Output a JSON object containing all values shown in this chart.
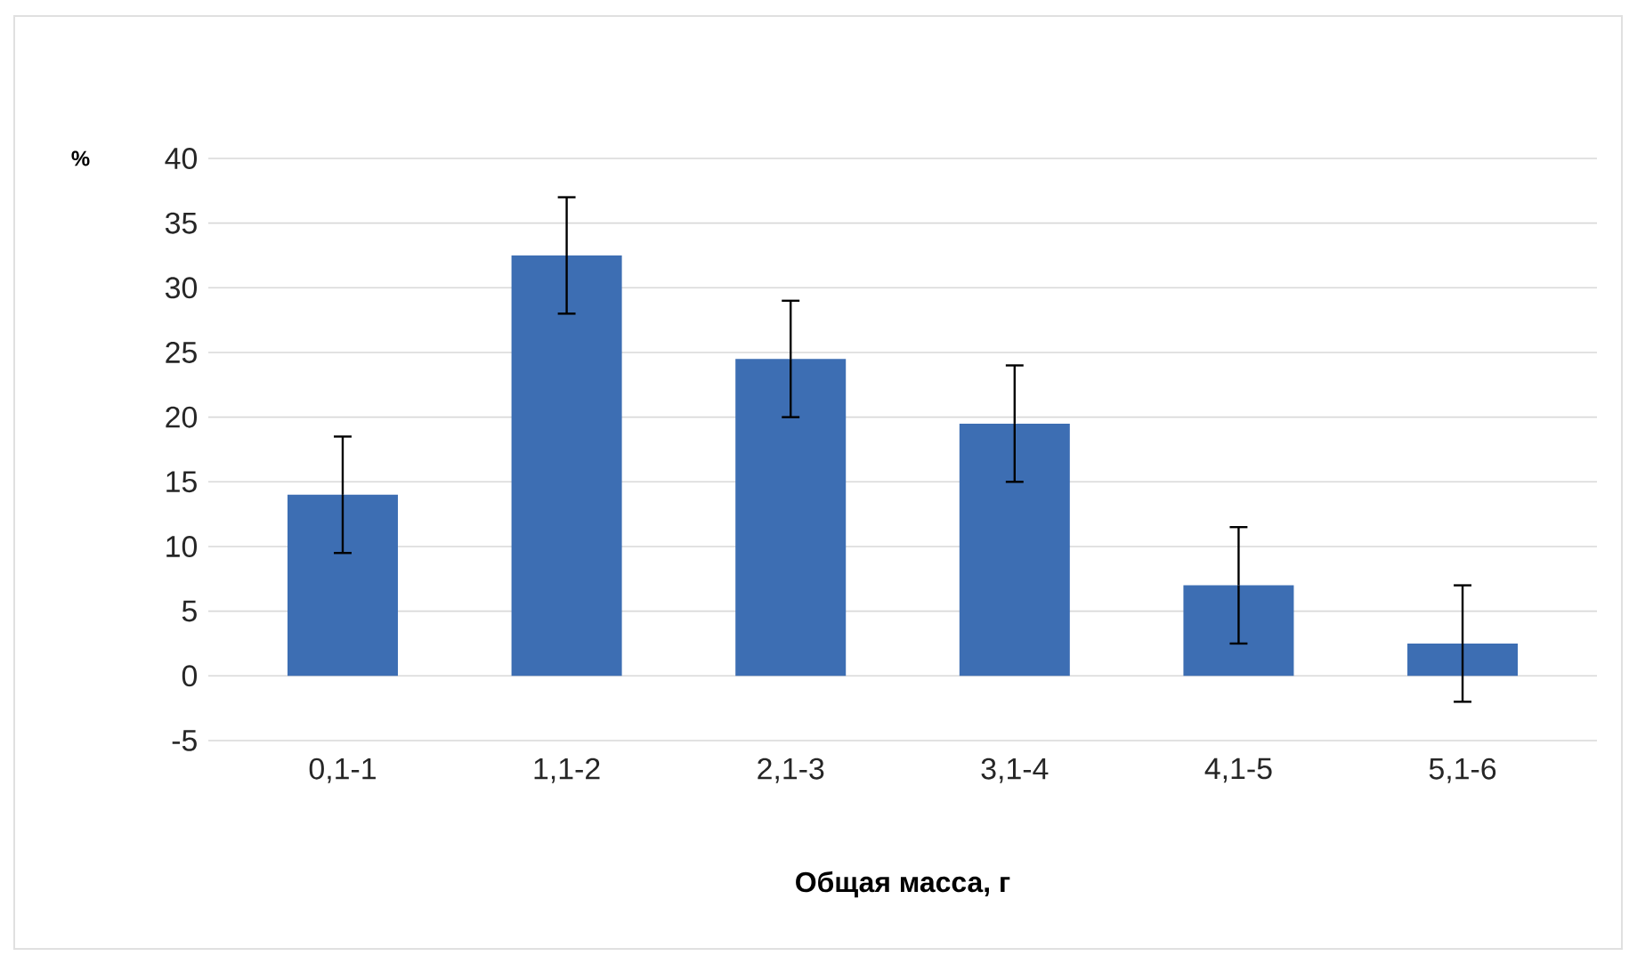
{
  "chart_data": {
    "type": "bar",
    "xlabel": "Общая масса, г",
    "ylabel": "%",
    "categories": [
      "0,1-1",
      "1,1-2",
      "2,1-3",
      "3,1-4",
      "4,1-5",
      "5,1-6"
    ],
    "values": [
      14,
      32.5,
      24.5,
      19.5,
      7,
      2.5
    ],
    "errors": [
      4.5,
      4.5,
      4.5,
      4.5,
      4.5,
      4.5
    ],
    "color": "#3d6eb3",
    "ylim": [
      -5,
      40
    ],
    "yticks": [
      -5,
      0,
      5,
      10,
      15,
      20,
      25,
      30,
      35,
      40
    ],
    "grid": "y"
  }
}
